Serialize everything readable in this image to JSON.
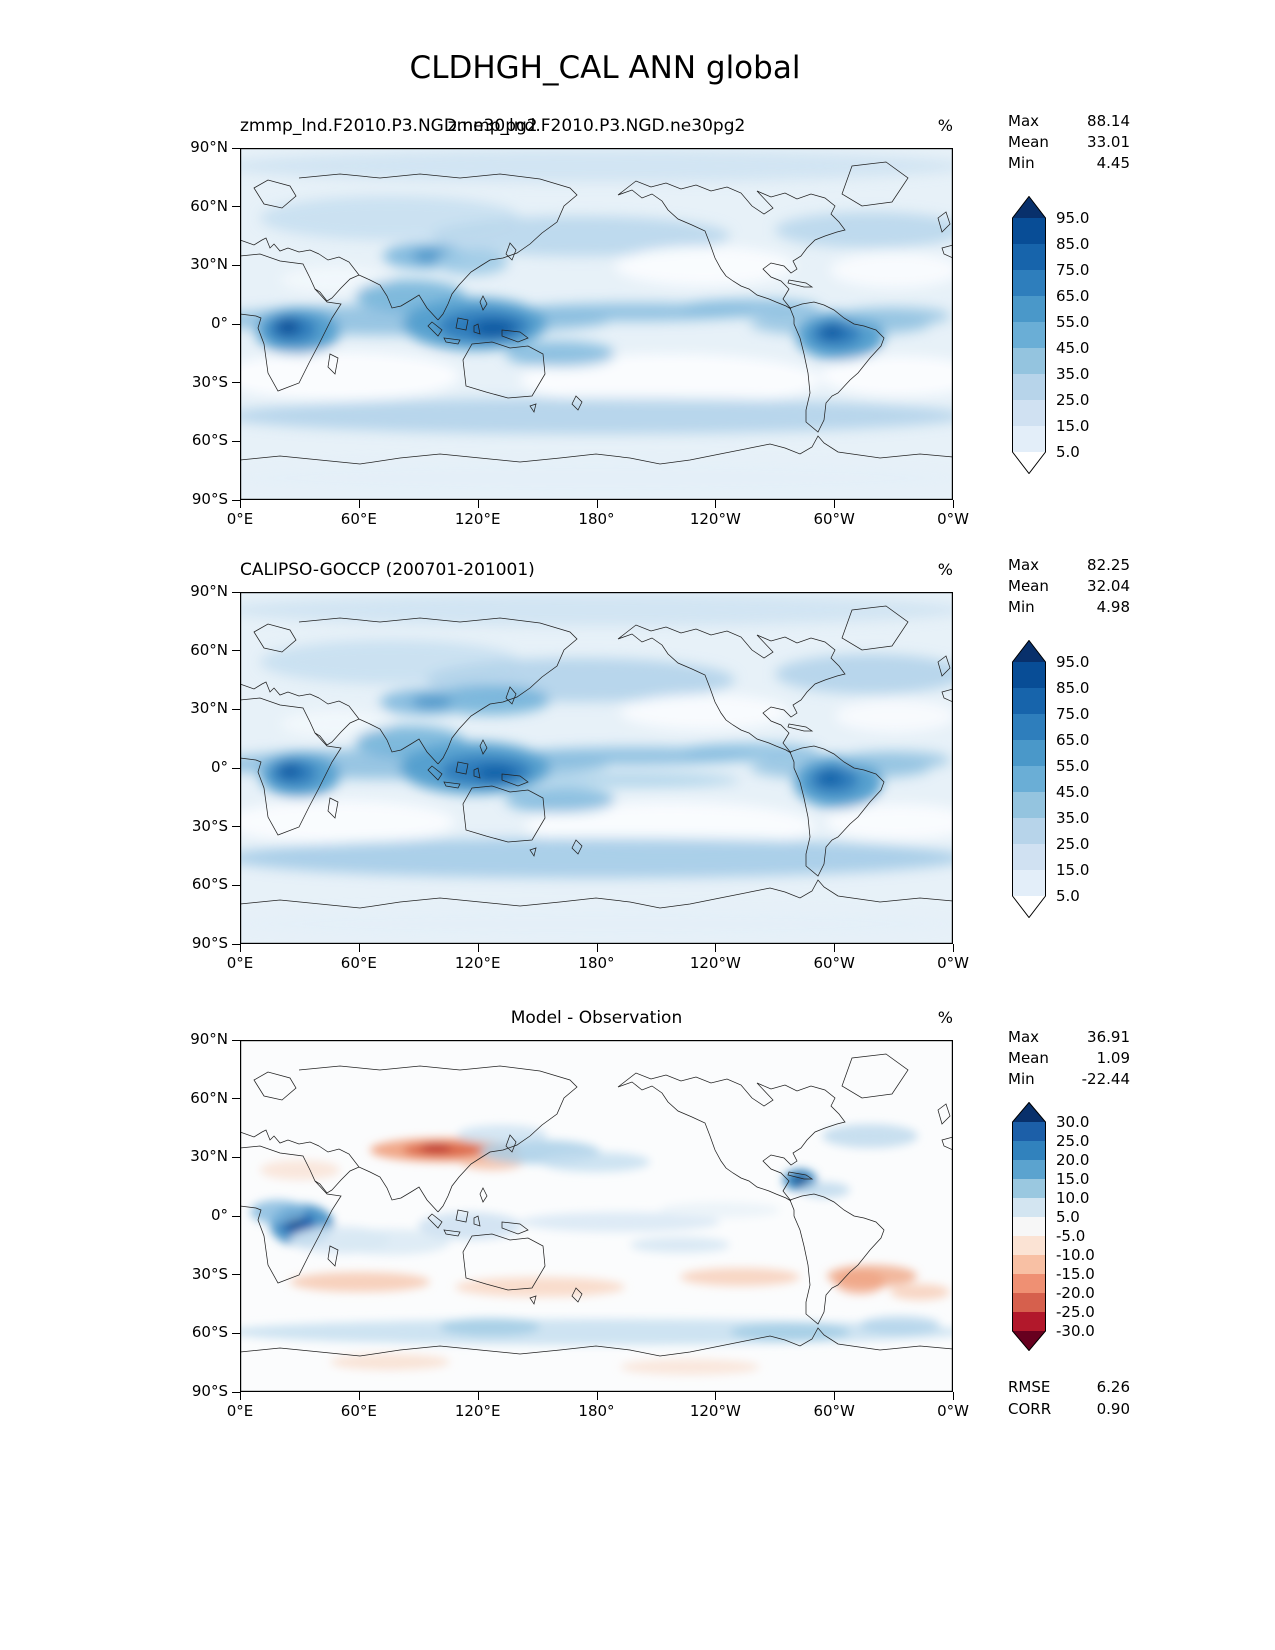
{
  "page_title": "CLDHGH_CAL ANN global",
  "ui": {
    "yticks": [
      "90°N",
      "60°N",
      "30°N",
      "0°",
      "30°S",
      "60°S",
      "90°S"
    ],
    "xticks": [
      "0°E",
      "60°E",
      "120°E",
      "180°",
      "120°W",
      "60°W",
      "0°W"
    ]
  },
  "panels": [
    {
      "id": "model",
      "title_left": "zmmp_lnd.F2010.P3.NGD.ne30pg2",
      "title_center": "zmmp_lnd.F2010.P3.NGD.ne30pg2",
      "units": "%",
      "stats": [
        {
          "label": "Max",
          "value": "88.14"
        },
        {
          "label": "Mean",
          "value": "33.01"
        },
        {
          "label": "Min",
          "value": "4.45"
        }
      ],
      "colorbar": {
        "ticks": [
          "95.0",
          "85.0",
          "75.0",
          "65.0",
          "55.0",
          "45.0",
          "35.0",
          "25.0",
          "15.0",
          "5.0"
        ],
        "segment_colors": [
          "#084d96",
          "#1764ab",
          "#2e7ebc",
          "#4a98c9",
          "#6aaed6",
          "#94c4df",
          "#b7d4ea",
          "#d0e1f2",
          "#e3eef9"
        ],
        "over_color": "#08306b",
        "under_color": "#ffffff"
      }
    },
    {
      "id": "observation",
      "title_left": "CALIPSO-GOCCP (200701-201001)",
      "units": "%",
      "stats": [
        {
          "label": "Max",
          "value": "82.25"
        },
        {
          "label": "Mean",
          "value": "32.04"
        },
        {
          "label": "Min",
          "value": "4.98"
        }
      ],
      "colorbar": {
        "ticks": [
          "95.0",
          "85.0",
          "75.0",
          "65.0",
          "55.0",
          "45.0",
          "35.0",
          "25.0",
          "15.0",
          "5.0"
        ],
        "segment_colors": [
          "#084d96",
          "#1764ab",
          "#2e7ebc",
          "#4a98c9",
          "#6aaed6",
          "#94c4df",
          "#b7d4ea",
          "#d0e1f2",
          "#e3eef9"
        ],
        "over_color": "#08306b",
        "under_color": "#ffffff"
      }
    },
    {
      "id": "difference",
      "title_center": "Model - Observation",
      "units": "%",
      "stats": [
        {
          "label": "Max",
          "value": "36.91"
        },
        {
          "label": "Mean",
          "value": "1.09"
        },
        {
          "label": "Min",
          "value": "-22.44"
        }
      ],
      "colorbar": {
        "ticks": [
          "30.0",
          "25.0",
          "20.0",
          "15.0",
          "10.0",
          "5.0",
          "-5.0",
          "-10.0",
          "-15.0",
          "-20.0",
          "-25.0",
          "-30.0"
        ],
        "segment_colors": [
          "#1c5fa8",
          "#3182bd",
          "#5ba3cf",
          "#9ac8e0",
          "#d3e5f1",
          "#f7f7f7",
          "#fbe3d4",
          "#f8c0a4",
          "#ef9073",
          "#d6604d",
          "#b2182b"
        ],
        "over_color": "#08306b",
        "under_color": "#67001f"
      },
      "extra_stats": [
        {
          "label": "RMSE",
          "value": "6.26"
        },
        {
          "label": "CORR",
          "value": "0.90"
        }
      ]
    }
  ],
  "chart_data": [
    {
      "type": "heatmap",
      "subtype": "filled-contour-global-map",
      "title": "zmmp_lnd.F2010.P3.NGD.ne30pg2",
      "variable": "CLDHGH_CAL",
      "season": "ANN",
      "domain": "global",
      "units": "%",
      "stats": {
        "max": 88.14,
        "mean": 33.01,
        "min": 4.45
      },
      "contour_levels": [
        5,
        15,
        25,
        35,
        45,
        55,
        65,
        75,
        85,
        95
      ],
      "colormap": "Blues",
      "x": {
        "ticks": [
          "0°E",
          "60°E",
          "120°E",
          "180°",
          "120°W",
          "60°W",
          "0°W"
        ],
        "range_deg": [
          0,
          360
        ]
      },
      "y": {
        "ticks": [
          "90°N",
          "60°N",
          "30°N",
          "0°",
          "30°S",
          "60°S",
          "90°S"
        ],
        "range_deg": [
          -90,
          90
        ]
      },
      "legend_position": "right"
    },
    {
      "type": "heatmap",
      "subtype": "filled-contour-global-map",
      "title": "CALIPSO-GOCCP (200701-201001)",
      "variable": "CLDHGH_CAL",
      "season": "ANN",
      "domain": "global",
      "units": "%",
      "stats": {
        "max": 82.25,
        "mean": 32.04,
        "min": 4.98
      },
      "contour_levels": [
        5,
        15,
        25,
        35,
        45,
        55,
        65,
        75,
        85,
        95
      ],
      "colormap": "Blues",
      "x": {
        "ticks": [
          "0°E",
          "60°E",
          "120°E",
          "180°",
          "120°W",
          "60°W",
          "0°W"
        ],
        "range_deg": [
          0,
          360
        ]
      },
      "y": {
        "ticks": [
          "90°N",
          "60°N",
          "30°N",
          "0°",
          "30°S",
          "60°S",
          "90°S"
        ],
        "range_deg": [
          -90,
          90
        ]
      },
      "legend_position": "right"
    },
    {
      "type": "heatmap",
      "subtype": "filled-contour-global-map",
      "title": "Model - Observation",
      "variable": "CLDHGH_CAL",
      "season": "ANN",
      "domain": "global",
      "units": "%",
      "stats": {
        "max": 36.91,
        "mean": 1.09,
        "min": -22.44,
        "rmse": 6.26,
        "corr": 0.9
      },
      "contour_levels": [
        -30,
        -25,
        -20,
        -15,
        -10,
        -5,
        5,
        10,
        15,
        20,
        25,
        30
      ],
      "colormap": "RdBu_r",
      "x": {
        "ticks": [
          "0°E",
          "60°E",
          "120°E",
          "180°",
          "120°W",
          "60°W",
          "0°W"
        ],
        "range_deg": [
          0,
          360
        ]
      },
      "y": {
        "ticks": [
          "90°N",
          "60°N",
          "30°N",
          "0°",
          "30°S",
          "60°S",
          "90°S"
        ],
        "range_deg": [
          -90,
          90
        ]
      },
      "legend_position": "right"
    }
  ]
}
